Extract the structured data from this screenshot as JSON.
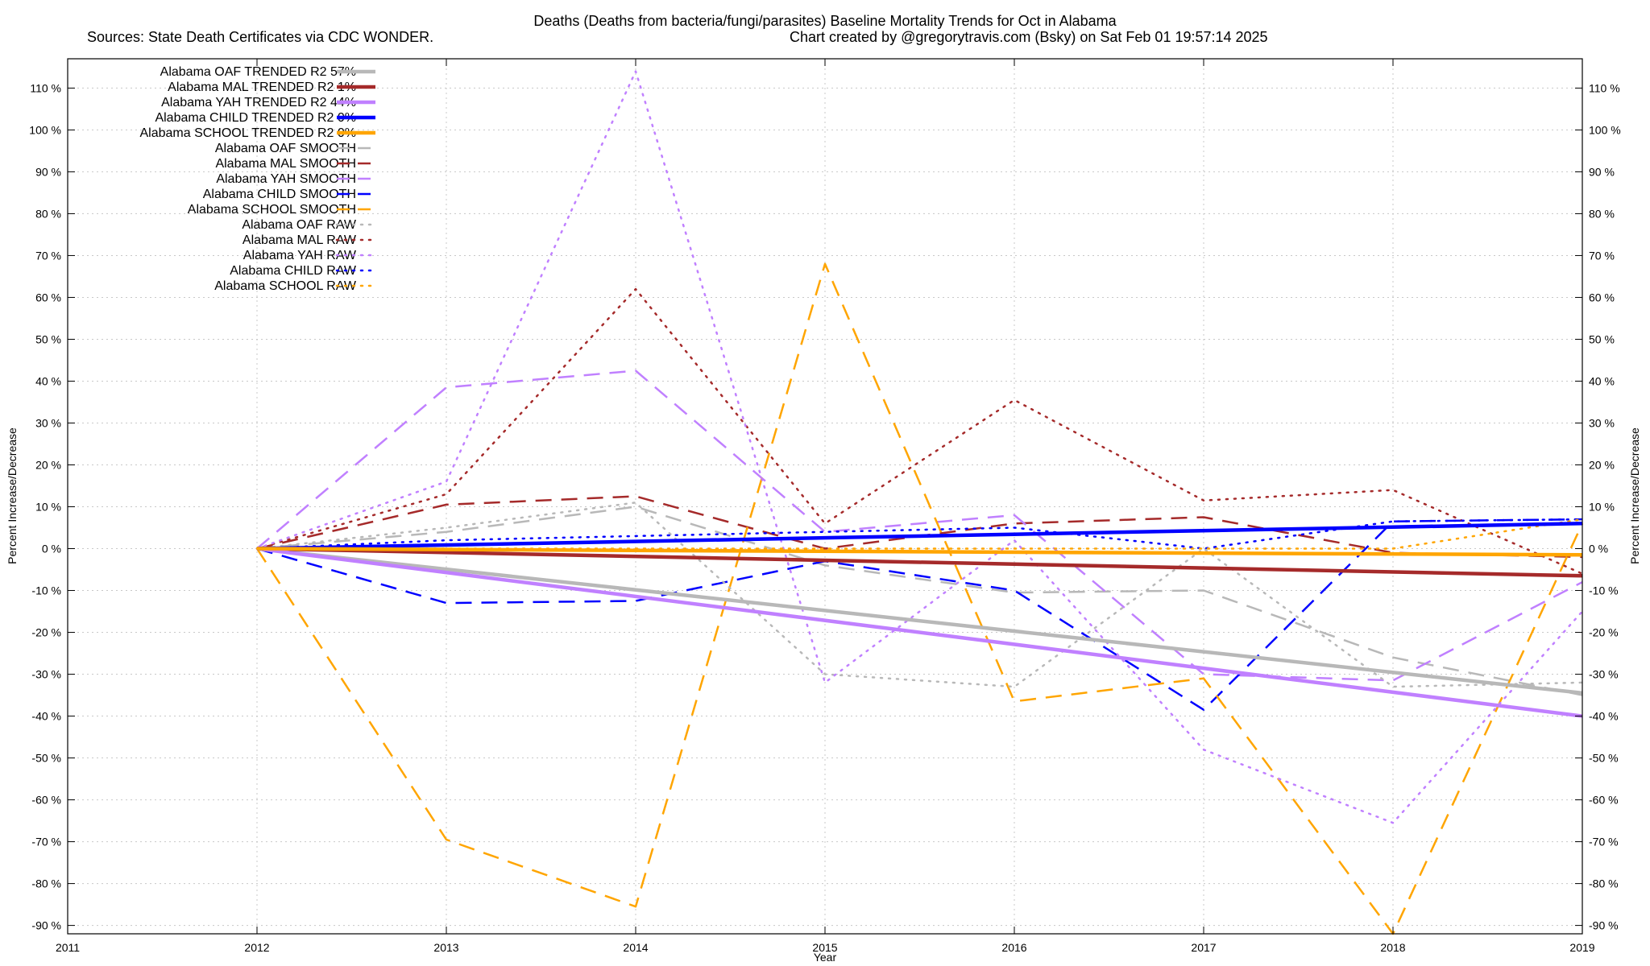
{
  "chart_data": {
    "type": "line",
    "title": "Deaths (Deaths from bacteria/fungi/parasites)  Baseline Mortality Trends for Oct in Alabama",
    "subtitle_left": "Sources: State Death Certificates via CDC WONDER.",
    "subtitle_right": "Chart created by @gregorytravis.com (Bsky) on Sat Feb 01 19:57:14 2025",
    "xlabel": "Year",
    "ylabel_left": "Percent Increase/Decrease",
    "ylabel_right": "Percent Increase/Decrease",
    "xlim": [
      2011,
      2019
    ],
    "ylim": [
      -92,
      117
    ],
    "x_ticks": [
      "2011",
      "2012",
      "2013",
      "2014",
      "2015",
      "2016",
      "2017",
      "2018",
      "2019"
    ],
    "y_ticks": [
      {
        "value": 110,
        "label": "110 %"
      },
      {
        "value": 100,
        "label": "100 %"
      },
      {
        "value": 90,
        "label": "90 %"
      },
      {
        "value": 80,
        "label": "80 %"
      },
      {
        "value": 70,
        "label": "70 %"
      },
      {
        "value": 60,
        "label": "60 %"
      },
      {
        "value": 50,
        "label": "50 %"
      },
      {
        "value": 40,
        "label": "40 %"
      },
      {
        "value": 30,
        "label": "30 %"
      },
      {
        "value": 20,
        "label": "20 %"
      },
      {
        "value": 10,
        "label": "10 %"
      },
      {
        "value": 0,
        "label": "0 %"
      },
      {
        "value": -10,
        "label": "-10 %"
      },
      {
        "value": -20,
        "label": "-20 %"
      },
      {
        "value": -30,
        "label": "-30 %"
      },
      {
        "value": -40,
        "label": "-40 %"
      },
      {
        "value": -50,
        "label": "-50 %"
      },
      {
        "value": -60,
        "label": "-60 %"
      },
      {
        "value": -70,
        "label": "-70 %"
      },
      {
        "value": -80,
        "label": "-80 %"
      },
      {
        "value": -90,
        "label": "-90 %"
      }
    ],
    "grid": true,
    "legend_position": "top-left",
    "series": [
      {
        "name": "Alabama OAF TRENDED R2  57%",
        "key": "oaf-trended",
        "color": "#b8b8b8",
        "style": "solid",
        "x": [
          2012,
          2019
        ],
        "values": [
          0,
          -34.5
        ]
      },
      {
        "name": "Alabama MAL TRENDED R2   1%",
        "key": "mal-trended",
        "color": "#a52a2a",
        "style": "solid",
        "x": [
          2012,
          2019
        ],
        "values": [
          0,
          -6.5
        ]
      },
      {
        "name": "Alabama YAH TRENDED R2  44%",
        "key": "yah-trended",
        "color": "#c080ff",
        "style": "solid",
        "x": [
          2012,
          2019
        ],
        "values": [
          0,
          -40
        ]
      },
      {
        "name": "Alabama CHILD TRENDED R2   0%",
        "key": "child-trended",
        "color": "#0000ff",
        "style": "solid",
        "x": [
          2012,
          2019
        ],
        "values": [
          0,
          6
        ]
      },
      {
        "name": "Alabama SCHOOL TRENDED R2   0%",
        "key": "school-trended",
        "color": "#ffa500",
        "style": "solid",
        "x": [
          2012,
          2019
        ],
        "values": [
          0,
          -1.5
        ]
      },
      {
        "name": "Alabama OAF SMOOTH",
        "key": "oaf-smooth",
        "color": "#b8b8b8",
        "style": "dashed",
        "x": [
          2012,
          2013,
          2014,
          2015,
          2016,
          2017,
          2018,
          2019
        ],
        "values": [
          0,
          4,
          10,
          -4,
          -10.5,
          -10,
          -26,
          -35
        ]
      },
      {
        "name": "Alabama MAL SMOOTH",
        "key": "mal-smooth",
        "color": "#a52a2a",
        "style": "dashed",
        "x": [
          2012,
          2013,
          2014,
          2015,
          2016,
          2017,
          2018,
          2019
        ],
        "values": [
          0,
          10.5,
          12.5,
          0,
          6,
          7.5,
          -1,
          -2
        ]
      },
      {
        "name": "Alabama YAH SMOOTH",
        "key": "yah-smooth",
        "color": "#c080ff",
        "style": "dashed",
        "x": [
          2012,
          2013,
          2014,
          2015,
          2016,
          2017,
          2018,
          2019
        ],
        "values": [
          0,
          38.5,
          42.5,
          4,
          8,
          -30,
          -31.5,
          -8
        ]
      },
      {
        "name": "Alabama CHILD SMOOTH",
        "key": "child-smooth",
        "color": "#0000ff",
        "style": "dashed",
        "x": [
          2012,
          2013,
          2014,
          2015,
          2016,
          2017,
          2018,
          2019
        ],
        "values": [
          0,
          -13,
          -12.5,
          -3,
          -10,
          -38.5,
          6.5,
          7
        ]
      },
      {
        "name": "Alabama SCHOOL SMOOTH",
        "key": "school-smooth",
        "color": "#ffa500",
        "style": "dashed",
        "x": [
          2012,
          2013,
          2014,
          2015,
          2016,
          2017,
          2018,
          2019
        ],
        "values": [
          0,
          -69.5,
          -85.5,
          68,
          -36.5,
          -31,
          -92,
          6
        ]
      },
      {
        "name": "Alabama OAF RAW",
        "key": "oaf-raw",
        "color": "#b8b8b8",
        "style": "dotted",
        "x": [
          2012,
          2013,
          2014,
          2015,
          2016,
          2017,
          2018,
          2019
        ],
        "values": [
          0,
          5,
          11,
          -30,
          -33,
          0,
          -33,
          -32
        ]
      },
      {
        "name": "Alabama MAL RAW",
        "key": "mal-raw",
        "color": "#a52a2a",
        "style": "dotted",
        "x": [
          2012,
          2013,
          2014,
          2015,
          2016,
          2017,
          2018,
          2019
        ],
        "values": [
          0,
          13,
          62,
          6,
          35.5,
          11.5,
          14,
          -6
        ]
      },
      {
        "name": "Alabama YAH RAW",
        "key": "yah-raw",
        "color": "#c080ff",
        "style": "dotted",
        "x": [
          2012,
          2013,
          2014,
          2015,
          2016,
          2017,
          2018,
          2019
        ],
        "values": [
          0,
          16,
          114,
          -32,
          2,
          -48,
          -65.5,
          -15
        ]
      },
      {
        "name": "Alabama CHILD RAW",
        "key": "child-raw",
        "color": "#0000ff",
        "style": "dotted",
        "x": [
          2012,
          2013,
          2014,
          2015,
          2016,
          2017,
          2018,
          2019
        ],
        "values": [
          0,
          2,
          3,
          4,
          5,
          0,
          6.5,
          7
        ]
      },
      {
        "name": "Alabama SCHOOL RAW",
        "key": "school-raw",
        "color": "#ffa500",
        "style": "dotted",
        "x": [
          2012,
          2013,
          2014,
          2015,
          2016,
          2017,
          2018,
          2019
        ],
        "values": [
          0,
          0,
          0,
          0,
          0,
          0,
          0,
          7
        ]
      }
    ]
  }
}
